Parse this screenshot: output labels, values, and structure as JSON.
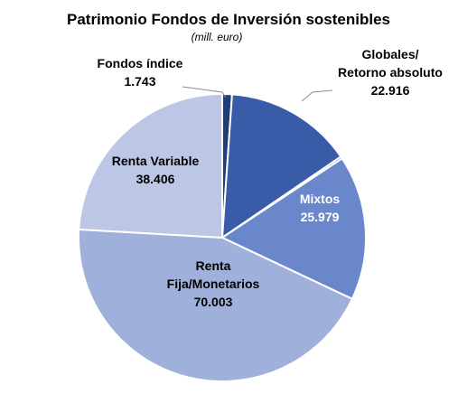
{
  "chart_data": {
    "type": "pie",
    "title": "Patrimonio  Fondos de Inversión sostenibles",
    "subtitle": "(mill. euro)",
    "start_angle_deg": 0,
    "direction": "clockwise",
    "slices": [
      {
        "label_lines": [
          "Fondos índice",
          "1.743"
        ],
        "value": 1743,
        "color": "#1f3d7a",
        "label_color": "#000000"
      },
      {
        "label_lines": [
          "Globales/",
          "Retorno absoluto",
          "22.916"
        ],
        "value": 22916,
        "color": "#3a5ba8",
        "label_color": "#000000"
      },
      {
        "label_lines": [
          "",
          ""
        ],
        "value": 400,
        "color": "#4d6fc0",
        "label_color": "#000000"
      },
      {
        "label_lines": [
          "Mixtos",
          "25.979"
        ],
        "value": 25979,
        "color": "#6b87cc",
        "label_color": "#ffffff"
      },
      {
        "label_lines": [
          "Renta",
          "Fija/Monetarios",
          "70.003"
        ],
        "value": 70003,
        "color": "#9fb0db",
        "label_color": "#000000"
      },
      {
        "label_lines": [
          "Renta Variable",
          "38.406"
        ],
        "value": 38406,
        "color": "#bcc7e6",
        "label_color": "#000000"
      }
    ]
  }
}
